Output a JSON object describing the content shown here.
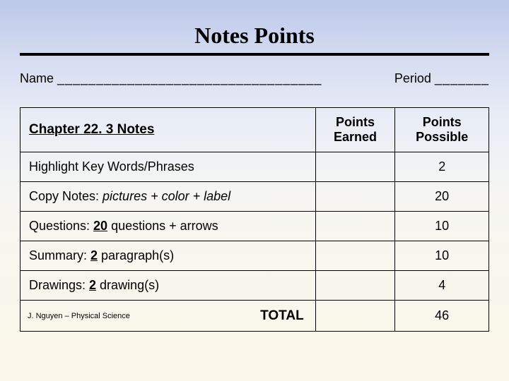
{
  "title": "Notes Points",
  "name_label": "Name",
  "name_blank": "__________________________________",
  "period_label": "Period",
  "period_blank": "_______",
  "table": {
    "chapter_header": "Chapter 22. 3 Notes",
    "col_earned": "Points Earned",
    "col_possible": "Points Possible",
    "rows": [
      {
        "desc_plain": "Highlight Key Words/Phrases",
        "possible": "2"
      },
      {
        "desc_prefix": "Copy Notes: ",
        "desc_italic": "pictures + color + label",
        "possible": "20"
      },
      {
        "desc_prefix": "Questions: ",
        "desc_num": "20",
        "desc_suffix": " questions + arrows",
        "possible": "10"
      },
      {
        "desc_prefix": "Summary: ",
        "desc_num": "2",
        "desc_suffix": " paragraph(s)",
        "possible": "10"
      },
      {
        "desc_prefix": "Drawings: ",
        "desc_num": "2",
        "desc_suffix": " drawing(s)",
        "possible": "4"
      }
    ],
    "total_label": "TOTAL",
    "total_possible": "46",
    "footer_credit": "J. Nguyen – Physical Science"
  },
  "colors": {
    "border": "#000000",
    "text": "#000000",
    "bg_top": "#bcc8ea",
    "bg_bottom": "#faf7e8"
  }
}
